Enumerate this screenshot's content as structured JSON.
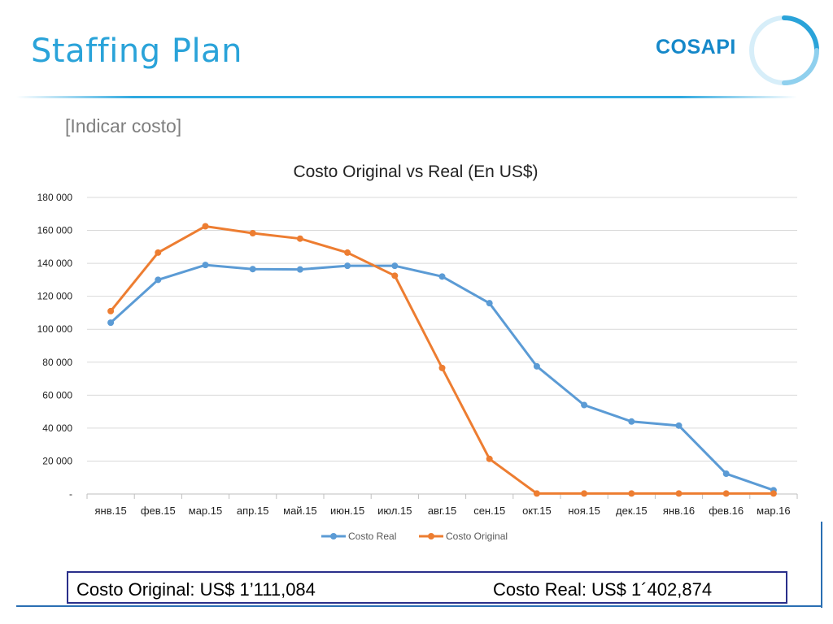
{
  "page": {
    "title": "Staffing Plan",
    "subtitle": "[Indicar costo]",
    "logo_text": "COSAPI",
    "summary_original": "Costo Original: US$ 1’111,084",
    "summary_real": "Costo Real: US$ 1´402,874"
  },
  "colors": {
    "accent": "#2aa3d9",
    "costo_real": "#5b9bd5",
    "costo_original": "#ed7d31",
    "frame": "#2a2f8a"
  },
  "chart_data": {
    "type": "line",
    "title": "Costo Original vs Real (En US$)",
    "xlabel": "",
    "ylabel": "",
    "categories": [
      "янв.15",
      "фев.15",
      "мар.15",
      "апр.15",
      "май.15",
      "июн.15",
      "июл.15",
      "авг.15",
      "сен.15",
      "окт.15",
      "ноя.15",
      "дек.15",
      "янв.16",
      "фев.16",
      "мар.16"
    ],
    "ylim": [
      0,
      180000
    ],
    "yticks": [
      0,
      20000,
      40000,
      60000,
      80000,
      100000,
      120000,
      140000,
      160000,
      180000
    ],
    "ytick_labels": [
      "-",
      "20 000",
      "40 000",
      "60 000",
      "80 000",
      "100 000",
      "120 000",
      "140 000",
      "160 000",
      "180 000"
    ],
    "grid": true,
    "legend_position": "bottom",
    "series": [
      {
        "name": "Costo Real",
        "color": "#5b9bd5",
        "values": [
          104000,
          130000,
          139000,
          136500,
          136300,
          138500,
          138500,
          132000,
          115800,
          77500,
          54000,
          44000,
          41500,
          12300,
          2300
        ]
      },
      {
        "name": "Costo Original",
        "color": "#ed7d31",
        "values": [
          111000,
          146500,
          162500,
          158300,
          155000,
          146500,
          132500,
          76500,
          21300,
          300,
          300,
          300,
          300,
          300,
          300
        ]
      }
    ]
  }
}
